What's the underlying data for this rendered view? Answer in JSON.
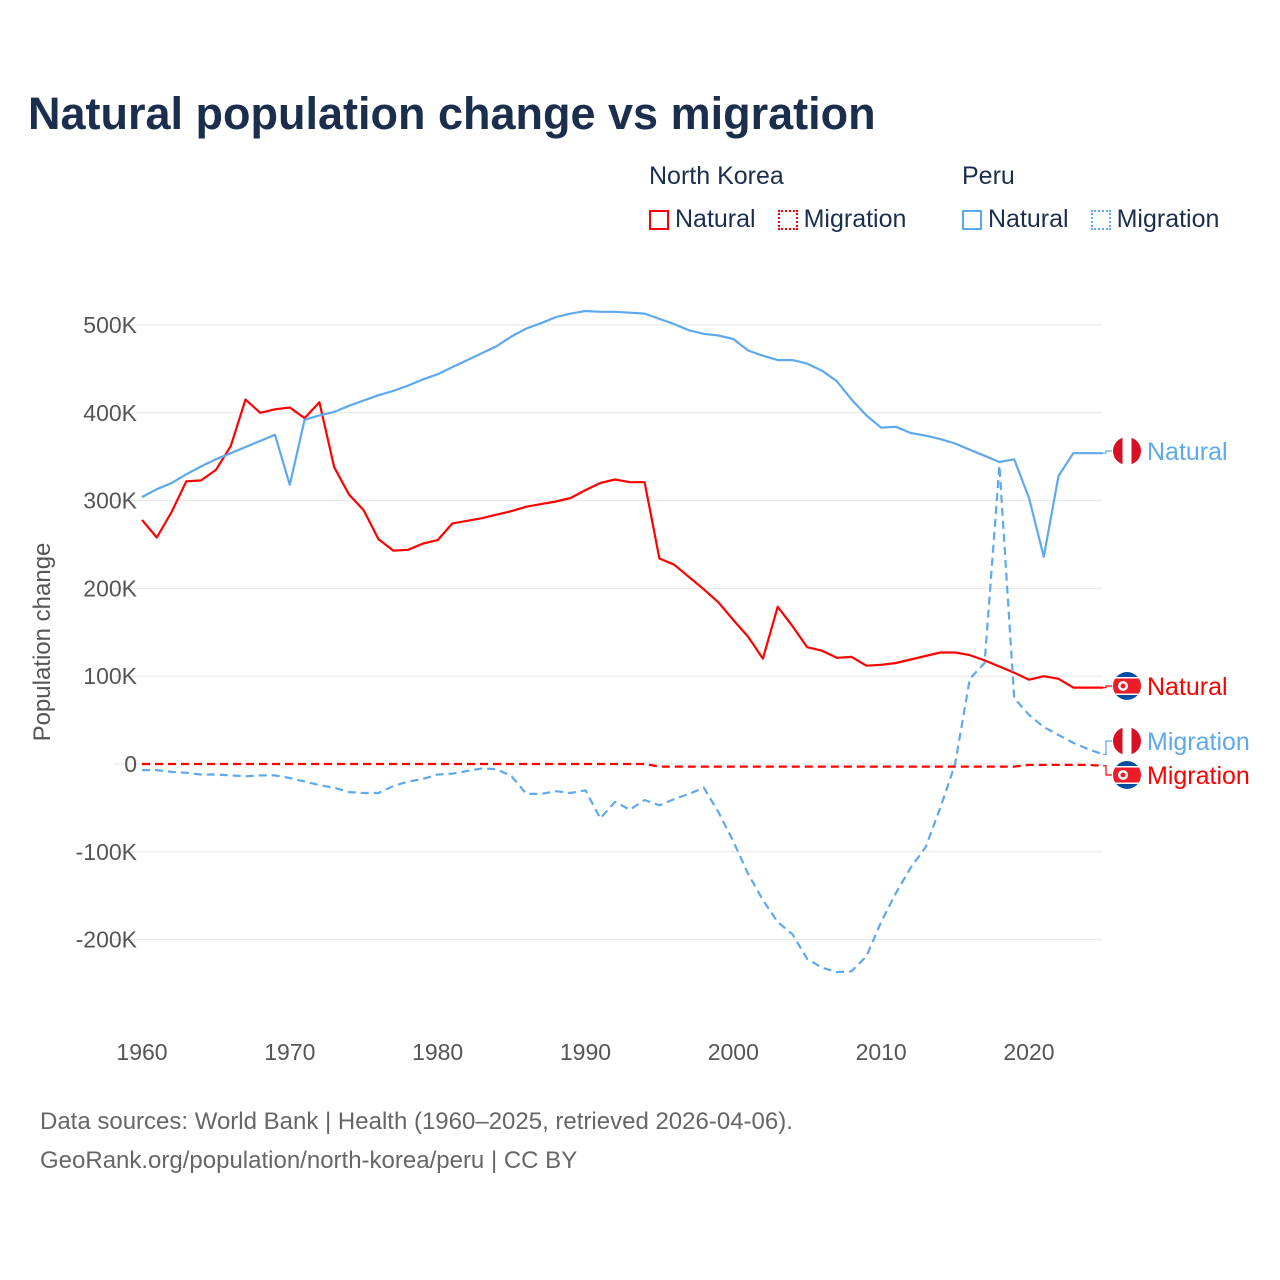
{
  "title": "Natural population change vs migration",
  "legend": {
    "groups": [
      {
        "name": "North Korea",
        "color": "#ff0000",
        "items": [
          "Natural",
          "Migration"
        ]
      },
      {
        "name": "Peru",
        "color": "#5ea8ee",
        "items": [
          "Natural",
          "Migration"
        ]
      }
    ]
  },
  "footer": {
    "line1": "Data sources: World Bank | Health (1960–2025, retrieved 2026-04-06).",
    "line2": "GeoRank.org/population/north-korea/peru | CC BY"
  },
  "chart_data": {
    "type": "line",
    "title": "Natural population change vs migration",
    "xlabel": "",
    "ylabel": "Population change",
    "xlim": [
      1960,
      2025
    ],
    "ylim": [
      -250000,
      550000
    ],
    "x_ticks": [
      "1960",
      "1970",
      "1980",
      "1990",
      "2000",
      "2010",
      "2020"
    ],
    "x_tick_values": [
      1960,
      1970,
      1980,
      1990,
      2000,
      2010,
      2020
    ],
    "y_ticks": [
      "500K",
      "400K",
      "300K",
      "200K",
      "100K",
      "0",
      "-100K",
      "-200K"
    ],
    "y_tick_values": [
      500000,
      400000,
      300000,
      200000,
      100000,
      0,
      -100000,
      -200000
    ],
    "grid": true,
    "x_start": 1960,
    "units": "thousands",
    "series": [
      {
        "name": "North Korea Natural",
        "country": "North Korea",
        "label": "Natural",
        "color": "#ff0000",
        "dash": false,
        "values": [
          278,
          258,
          287,
          322,
          323,
          335,
          362,
          415,
          400,
          404,
          406,
          394,
          412,
          338,
          307,
          289,
          256,
          243,
          244,
          251,
          255,
          274,
          277,
          280,
          284,
          288,
          293,
          296,
          299,
          303,
          312,
          320,
          324,
          321,
          321,
          234,
          227,
          213,
          199,
          184,
          164,
          145,
          120,
          179,
          157,
          133,
          129,
          121,
          122,
          112,
          113,
          115,
          119,
          123,
          127,
          127,
          124,
          118,
          111,
          104,
          96,
          100,
          97,
          87,
          87,
          87
        ]
      },
      {
        "name": "Peru Natural",
        "country": "Peru",
        "label": "Natural",
        "color": "#5ea8ee",
        "dash": false,
        "values": [
          304,
          313,
          320,
          330,
          339,
          347,
          354,
          361,
          368,
          375,
          318,
          392,
          397,
          401,
          408,
          414,
          420,
          425,
          431,
          438,
          444,
          452,
          460,
          468,
          476,
          487,
          496,
          502,
          509,
          513,
          516,
          515,
          515,
          514,
          513,
          507,
          501,
          494,
          490,
          488,
          484,
          471,
          465,
          460,
          460,
          456,
          448,
          436,
          415,
          397,
          383,
          384,
          377,
          374,
          370,
          365,
          358,
          351,
          344,
          347,
          303,
          236,
          328,
          354,
          354,
          354
        ]
      },
      {
        "name": "Peru Migration",
        "country": "Peru",
        "label": "Migration",
        "color": "#5ea8ee",
        "dash": true,
        "values": [
          -7,
          -7,
          -9,
          -10,
          -12,
          -12,
          -13,
          -14,
          -13,
          -13,
          -16,
          -20,
          -24,
          -27,
          -32,
          -33,
          -33,
          -25,
          -20,
          -17,
          -12,
          -11,
          -8,
          -5,
          -6,
          -14,
          -34,
          -34,
          -31,
          -33,
          -30,
          -62,
          -43,
          -52,
          -41,
          -47,
          -40,
          -34,
          -27,
          -55,
          -88,
          -125,
          -155,
          -180,
          -194,
          -222,
          -232,
          -237,
          -236,
          -219,
          -180,
          -147,
          -118,
          -95,
          -50,
          0,
          97,
          115,
          340,
          75,
          56,
          42,
          33,
          24,
          17,
          11
        ]
      },
      {
        "name": "North Korea Migration",
        "country": "North Korea",
        "label": "Migration",
        "color": "#ff0000",
        "dash": true,
        "values": [
          0,
          0,
          0,
          0,
          0,
          0,
          0,
          0,
          0,
          0,
          0,
          0,
          0,
          0,
          0,
          0,
          0,
          0,
          0,
          0,
          0,
          0,
          0,
          0,
          0,
          0,
          0,
          0,
          0,
          0,
          0,
          0,
          0,
          0,
          0,
          -3,
          -3,
          -3,
          -3,
          -3,
          -3,
          -3,
          -3,
          -3,
          -3,
          -3,
          -3,
          -3,
          -3,
          -3,
          -3,
          -3,
          -3,
          -3,
          -3,
          -3,
          -3,
          -3,
          -3,
          -3,
          -1,
          -1,
          -1,
          -1,
          -1,
          -2
        ]
      }
    ],
    "end_labels": [
      "Natural",
      "Natural",
      "Migration",
      "Migration"
    ]
  }
}
